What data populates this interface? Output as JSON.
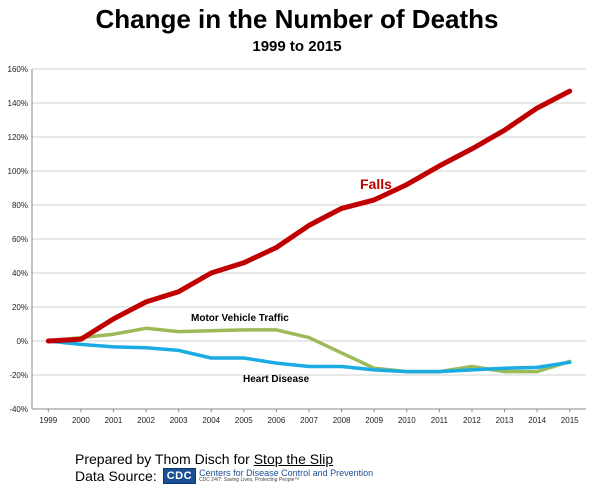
{
  "colors": {
    "falls": "#c00000",
    "motor_vehicle": "#9bbb59",
    "heart_disease": "#1aabe2",
    "grid": "#d0d0d0",
    "axis": "#888888"
  },
  "chart_data": {
    "type": "line",
    "title": "Change in the Number of Deaths",
    "subtitle": "1999 to 2015",
    "xlabel": "",
    "ylabel": "",
    "x": [
      "1999",
      "2000",
      "2001",
      "2002",
      "2003",
      "2004",
      "2005",
      "2006",
      "2007",
      "2008",
      "2009",
      "2010",
      "2011",
      "2012",
      "2013",
      "2014",
      "2015"
    ],
    "ylim": [
      -40,
      160
    ],
    "yticks": [
      "-40%",
      "-20%",
      "0%",
      "20%",
      "40%",
      "60%",
      "80%",
      "100%",
      "120%",
      "140%",
      "160%"
    ],
    "yticks_values": [
      -40,
      -20,
      0,
      20,
      40,
      60,
      80,
      100,
      120,
      140,
      160
    ],
    "grid": true,
    "series": [
      {
        "name": "Falls",
        "color": "#c00000",
        "values": [
          0,
          1,
          13,
          23,
          29,
          40,
          46,
          55,
          68,
          78,
          83,
          92,
          103,
          113,
          124,
          137,
          147
        ]
      },
      {
        "name": "Motor Vehicle Traffic",
        "color": "#9bbb59",
        "values": [
          0,
          2,
          4,
          7.5,
          5.5,
          6,
          6.5,
          6.5,
          2,
          -7,
          -16,
          -18,
          -18,
          -15,
          -18,
          -18,
          -12
        ]
      },
      {
        "name": "Heart Disease",
        "color": "#1aabe2",
        "values": [
          0,
          -2,
          -3.5,
          -4,
          -5.5,
          -10,
          -10,
          -13,
          -15,
          -15,
          -17,
          -18,
          -18,
          -17,
          -16,
          -15.5,
          -12.5
        ]
      }
    ]
  },
  "footer": {
    "prepared_prefix": "Prepared by Thom Disch for ",
    "prepared_link": "Stop the Slip",
    "source_label": "Data Source:",
    "cdc_badge": "CDC",
    "cdc_org": "Centers for Disease Control and Prevention",
    "cdc_tagline": "CDC 24/7: Saving Lives, Protecting People™"
  }
}
